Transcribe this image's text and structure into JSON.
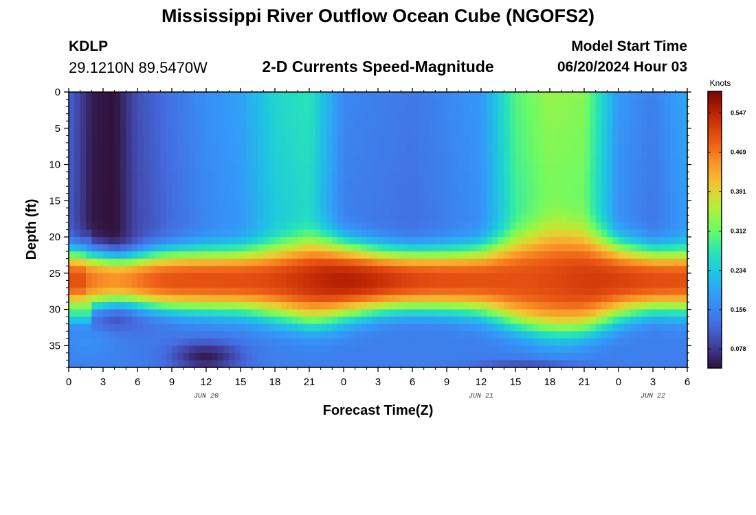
{
  "page": {
    "title_top": "Mississippi River Outflow Ocean Cube (NGOFS2)",
    "title_bottom": "Mississippi River Outflow Ocean Cube (NGOFS2)",
    "station_id": "KDLP",
    "station_coords": "29.1210N  89.5470W",
    "subtitle": "2-D Currents Speed-Magnitude",
    "start_label": "Model Start Time",
    "start_value": "06/20/2024 Hour 03"
  },
  "chart_data": {
    "type": "heatmap",
    "title": "2-D Currents Speed-Magnitude",
    "xlabel": "Forecast Time(Z)",
    "ylabel": "Depth (ft)",
    "x_range": [
      0,
      54
    ],
    "y_range": [
      0,
      38
    ],
    "x_ticks": [
      0,
      3,
      6,
      9,
      12,
      15,
      18,
      21,
      24,
      27,
      30,
      33,
      36,
      39,
      42,
      45,
      48,
      51,
      54
    ],
    "x_tick_labels": [
      "0",
      "3",
      "6",
      "9",
      "12",
      "15",
      "18",
      "21",
      "0",
      "3",
      "6",
      "9",
      "12",
      "15",
      "18",
      "21",
      "0",
      "3",
      "6"
    ],
    "date_labels": [
      {
        "x": 12,
        "label": "JUN 20"
      },
      {
        "x": 36,
        "label": "JUN 21"
      },
      {
        "x": 51,
        "label": "JUN 22"
      }
    ],
    "y_ticks": [
      0,
      5,
      10,
      15,
      20,
      25,
      30,
      35
    ],
    "y_tick_labels": [
      "0",
      "5",
      "10",
      "15",
      "20",
      "25",
      "30",
      "35"
    ],
    "colorbar": {
      "unit": "Knots",
      "min": 0.04,
      "max": 0.59,
      "ticks": [
        0.078,
        0.156,
        0.234,
        0.312,
        0.391,
        0.469,
        0.547
      ],
      "tick_labels": [
        "0.078",
        "0.156",
        "0.234",
        "0.312",
        "0.391",
        "0.469",
        "0.547"
      ]
    },
    "description_values": {
      "surface_layer_speed_by_hour": {
        "hours": [
          0,
          2,
          4,
          6,
          12,
          15,
          18,
          21,
          24,
          30,
          36,
          39,
          42,
          45,
          48,
          51,
          54
        ],
        "knots": [
          0.12,
          0.05,
          0.04,
          0.1,
          0.17,
          0.19,
          0.25,
          0.27,
          0.16,
          0.14,
          0.18,
          0.3,
          0.34,
          0.33,
          0.18,
          0.15,
          0.2
        ]
      },
      "core_layer_depth_ft": 26,
      "core_layer_peak_knots": 0.57
    }
  }
}
